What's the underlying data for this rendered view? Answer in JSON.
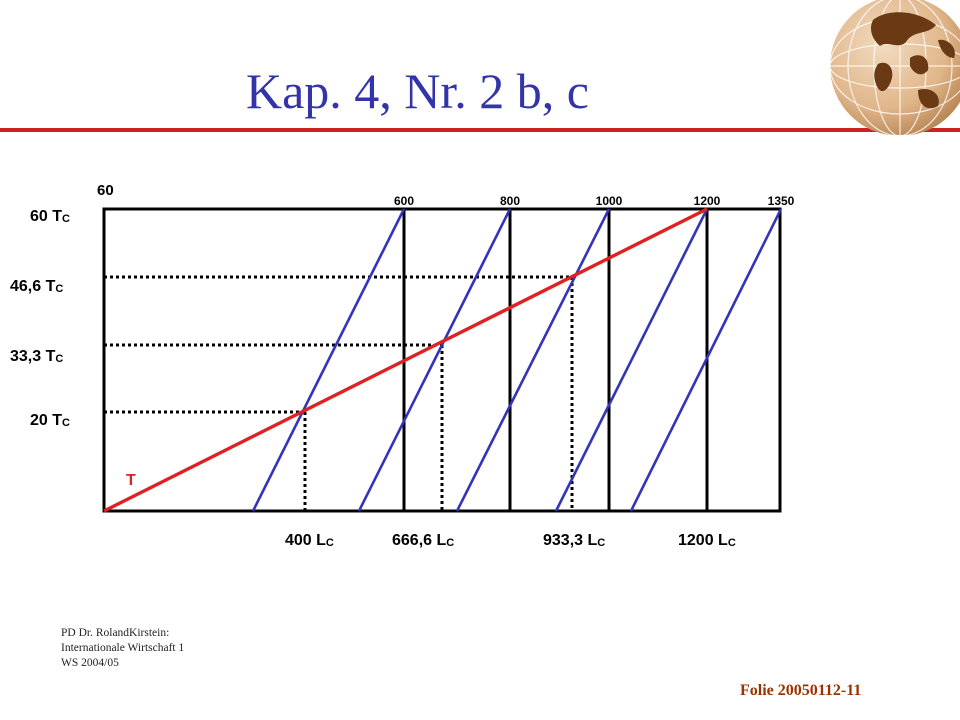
{
  "slide": {
    "title": "Kap. 4, Nr. 2 b, c",
    "footer_lines": [
      "PD Dr. RolandKirstein:",
      "Internationale Wirtschaft 1",
      "WS 2004/05"
    ],
    "slide_number": "Folie 20050112-11"
  },
  "colors": {
    "title": "#3333aa",
    "rule": "#cc2222",
    "blue_lines": "#3333bb",
    "red_line": "#dd2222",
    "folie": "#993300"
  },
  "diagram": {
    "y_top_label": "60",
    "x_top_labels": [
      "600",
      "800",
      "1000",
      "1200",
      "1350"
    ],
    "y_labels": [
      {
        "value": "60 T",
        "sub": "C"
      },
      {
        "value": "46,6 T",
        "sub": "C"
      },
      {
        "value": "33,3 T",
        "sub": "C"
      },
      {
        "value": "20 T",
        "sub": "C"
      }
    ],
    "x_bottom_labels": [
      {
        "value": "400 L",
        "sub": "C"
      },
      {
        "value": "666,6 L",
        "sub": "C"
      },
      {
        "value": "933,3 L",
        "sub": "C"
      },
      {
        "value": "1200 L",
        "sub": "C"
      }
    ],
    "curve_label": "T"
  }
}
